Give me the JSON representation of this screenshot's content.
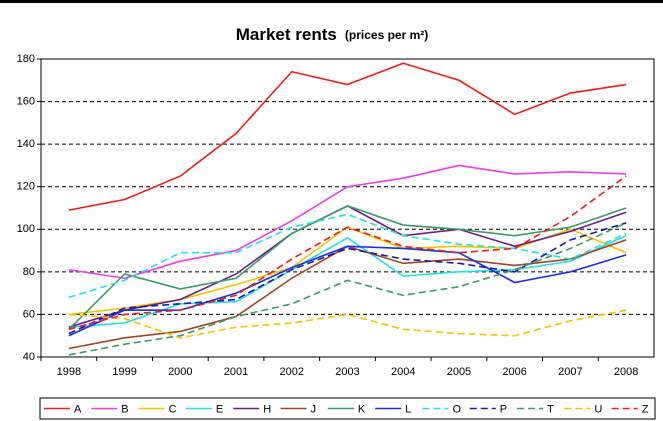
{
  "chart_data": {
    "type": "line",
    "title": "Market rents",
    "subtitle": "(prices per m²)",
    "categories": [
      "1998",
      "1999",
      "2000",
      "2001",
      "2002",
      "2003",
      "2004",
      "2005",
      "2006",
      "2007",
      "2008"
    ],
    "ylim": [
      40,
      180
    ],
    "yticks": [
      40,
      60,
      80,
      100,
      120,
      140,
      160,
      180
    ],
    "grid": true,
    "legend": "bottom",
    "series": [
      {
        "name": "A",
        "color": "#e8201c",
        "values": [
          109,
          114,
          125,
          145,
          174,
          168,
          178,
          170,
          154,
          164,
          168
        ]
      },
      {
        "name": "B",
        "color": "#e83ee8",
        "values": [
          81,
          77,
          85,
          90,
          104,
          120,
          124,
          130,
          126,
          127,
          126
        ]
      },
      {
        "name": "C",
        "color": "#f5c400",
        "values": [
          60,
          63,
          67,
          74,
          82,
          101,
          91,
          92,
          91,
          100,
          89
        ]
      },
      {
        "name": "E",
        "color": "#22e0e8",
        "values": [
          54,
          56,
          65,
          66,
          81,
          96,
          78,
          80,
          81,
          85,
          97
        ]
      },
      {
        "name": "H",
        "color": "#6a1e8c",
        "values": [
          54,
          62,
          67,
          79,
          98,
          111,
          97,
          100,
          92,
          99,
          108
        ]
      },
      {
        "name": "J",
        "color": "#a0461e",
        "values": [
          44,
          49,
          52,
          59,
          77,
          92,
          84,
          86,
          83,
          86,
          95
        ]
      },
      {
        "name": "K",
        "color": "#3a9a6a",
        "values": [
          53,
          79,
          72,
          77,
          98,
          111,
          102,
          100,
          97,
          101,
          110
        ]
      },
      {
        "name": "L",
        "color": "#1a2ee0",
        "values": [
          50,
          62,
          62,
          70,
          82,
          92,
          91,
          89,
          75,
          80,
          88
        ]
      },
      {
        "name": "O",
        "color": "#22e0e8",
        "dashed": true,
        "values": [
          68,
          76,
          89,
          89,
          101,
          107,
          97,
          93,
          91,
          86,
          98
        ]
      },
      {
        "name": "P",
        "color": "#1a1aa0",
        "dashed": true,
        "values": [
          51,
          63,
          65,
          67,
          81,
          91,
          86,
          84,
          80,
          95,
          103
        ]
      },
      {
        "name": "T",
        "color": "#3a9a6a",
        "dashed": true,
        "values": [
          41,
          46,
          50,
          59,
          65,
          76,
          69,
          73,
          81,
          91,
          103
        ]
      },
      {
        "name": "U",
        "color": "#f5c400",
        "dashed": true,
        "values": [
          60,
          58,
          49,
          54,
          56,
          60,
          53,
          51,
          50,
          57,
          62
        ]
      },
      {
        "name": "Z",
        "color": "#e8201c",
        "dashed": true,
        "values": [
          53,
          60,
          62,
          69,
          86,
          101,
          92,
          89,
          91,
          106,
          125
        ]
      }
    ]
  }
}
